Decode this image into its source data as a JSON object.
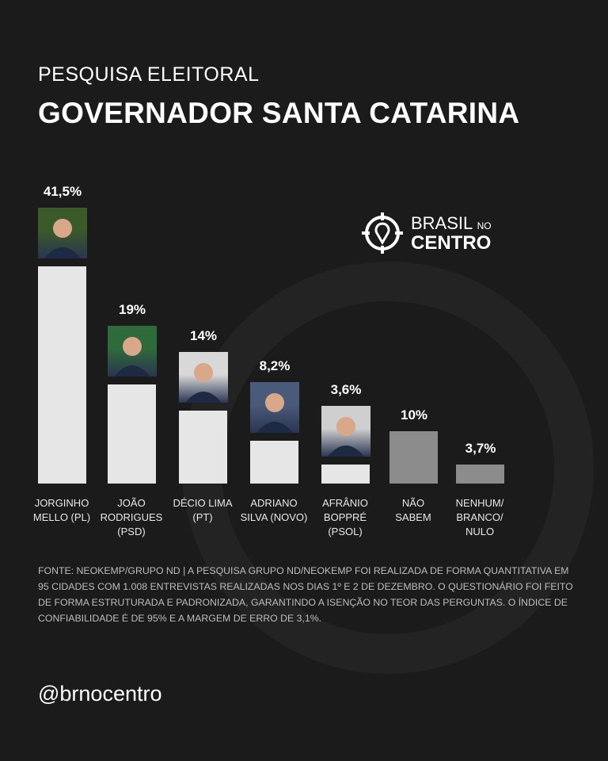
{
  "header": {
    "subtitle": "PESQUISA ELEITORAL",
    "title": "GOVERNADOR SANTA CATARINA"
  },
  "logo": {
    "line1": "BRASIL",
    "small": "NO",
    "line2": "CENTRO",
    "icon": "crosshair-pin-icon"
  },
  "colors": {
    "background": "#1b1b1b",
    "candidate_bar": "#e6e6e6",
    "other_bar": "#8c8c8c"
  },
  "chart_data": {
    "type": "bar",
    "categories": [
      "JORGINHO\nMELLO (PL)",
      "JOÃO\nRODRIGUES\n(PSD)",
      "DÉCIO LIMA\n(PT)",
      "ADRIANO\nSILVA (NOVO)",
      "AFRÂNIO\nBOPPRÉ\n(PSOL)",
      "NÃO\nSABEM",
      "NENHUM/\nBRANCO/\nNULO"
    ],
    "values": [
      41.5,
      19,
      14,
      8.2,
      3.6,
      10,
      3.7
    ],
    "labels": [
      "41,5%",
      "19%",
      "14%",
      "8,2%",
      "3,6%",
      "10%",
      "3,7%"
    ],
    "has_photo": [
      true,
      true,
      true,
      true,
      true,
      false,
      false
    ],
    "ylim": [
      0,
      41.5
    ],
    "grid": false
  },
  "footer": {
    "source": "FONTE: NEOKEMP/GRUPO ND | A PESQUISA GRUPO ND/NEOKEMP FOI REALIZADA DE FORMA QUANTITATIVA EM 95 CIDADES COM 1.008 ENTREVISTAS REALIZADAS NOS DIAS 1º E 2 DE DEZEMBRO. O QUESTIONÁRIO FOI FEITO DE FORMA ESTRUTURADA E PADRONIZADA, GARANTINDO A ISENÇÃO NO TEOR DAS PERGUNTAS. O ÍNDICE DE CONFIABILIDADE É DE 95% E A MARGEM DE ERRO DE 3,1%.",
    "handle": "@brnocentro"
  }
}
